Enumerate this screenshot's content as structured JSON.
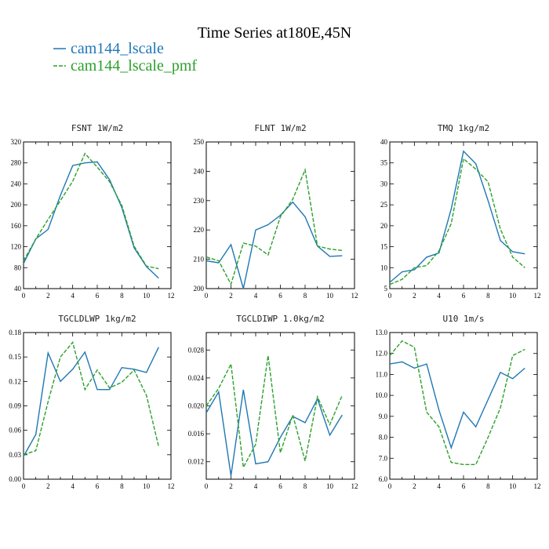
{
  "title": "Time Series at180E,45N",
  "legend": [
    {
      "label": "cam144_lscale",
      "color": "#1f77b4"
    },
    {
      "label": "cam144_lscale_pmf",
      "color": "#2ca02c"
    }
  ],
  "chart_data": [
    {
      "type": "line",
      "title": "FSNT  1W/m2",
      "xlim": [
        0,
        12
      ],
      "ylim": [
        40,
        320
      ],
      "xticks": [
        "0",
        "2",
        "4",
        "6",
        "8",
        "10",
        "12"
      ],
      "yticks": [
        "40",
        "80",
        "120",
        "160",
        "200",
        "240",
        "280",
        "320"
      ],
      "x": [
        0,
        1,
        2,
        3,
        4,
        5,
        6,
        7,
        8,
        9,
        10,
        11
      ],
      "series": [
        {
          "name": "cam144_lscale",
          "values": [
            88,
            135,
            153,
            218,
            275,
            280,
            282,
            248,
            195,
            118,
            82,
            60
          ]
        },
        {
          "name": "cam144_lscale_pmf",
          "values": [
            93,
            135,
            172,
            208,
            245,
            298,
            272,
            244,
            199,
            121,
            83,
            78
          ]
        }
      ]
    },
    {
      "type": "line",
      "title": "FLNT  1W/m2",
      "xlim": [
        0,
        12
      ],
      "ylim": [
        200,
        250
      ],
      "xticks": [
        "0",
        "2",
        "4",
        "6",
        "8",
        "10",
        "12"
      ],
      "yticks": [
        "200",
        "210",
        "220",
        "230",
        "240",
        "250"
      ],
      "x": [
        0,
        1,
        2,
        3,
        4,
        5,
        6,
        7,
        8,
        9,
        10,
        11
      ],
      "series": [
        {
          "name": "cam144_lscale",
          "values": [
            209.5,
            208.8,
            215,
            200,
            220,
            221.8,
            225,
            229.5,
            224.5,
            214.5,
            211,
            211.2
          ]
        },
        {
          "name": "cam144_lscale_pmf",
          "values": [
            210.8,
            209.5,
            201.5,
            215.5,
            214.5,
            211.5,
            224.5,
            230.5,
            240.5,
            214.5,
            213.5,
            213
          ]
        }
      ]
    },
    {
      "type": "line",
      "title": "TMQ  1kg/m2",
      "xlim": [
        0,
        12
      ],
      "ylim": [
        5,
        40
      ],
      "xticks": [
        "0",
        "2",
        "4",
        "6",
        "8",
        "10",
        "12"
      ],
      "yticks": [
        "5",
        "10",
        "15",
        "20",
        "25",
        "30",
        "35",
        "40"
      ],
      "x": [
        0,
        1,
        2,
        3,
        4,
        5,
        6,
        7,
        8,
        9,
        10,
        11
      ],
      "series": [
        {
          "name": "cam144_lscale",
          "values": [
            6.5,
            9,
            9.5,
            12.5,
            13.5,
            24,
            37.8,
            34.8,
            26,
            16.5,
            13.8,
            13.3
          ]
        },
        {
          "name": "cam144_lscale_pmf",
          "values": [
            6,
            7.2,
            10,
            10.5,
            14,
            20.5,
            36,
            33.5,
            30.5,
            19.2,
            12.5,
            10
          ]
        }
      ]
    },
    {
      "type": "line",
      "title": "TGCLDLWP  1kg/m2",
      "xlim": [
        0,
        12
      ],
      "ylim": [
        0,
        0.18
      ],
      "xticks": [
        "0",
        "2",
        "4",
        "6",
        "8",
        "10",
        "12"
      ],
      "yticks": [
        "0.00",
        "0.03",
        "0.06",
        "0.09",
        "0.12",
        "0.15",
        "0.18"
      ],
      "x": [
        0,
        1,
        2,
        3,
        4,
        5,
        6,
        7,
        8,
        9,
        10,
        11
      ],
      "series": [
        {
          "name": "cam144_lscale",
          "values": [
            0.028,
            0.055,
            0.155,
            0.12,
            0.135,
            0.156,
            0.11,
            0.11,
            0.137,
            0.135,
            0.131,
            0.162
          ]
        },
        {
          "name": "cam144_lscale_pmf",
          "values": [
            0.03,
            0.035,
            0.095,
            0.15,
            0.168,
            0.11,
            0.134,
            0.112,
            0.119,
            0.134,
            0.103,
            0.04
          ]
        }
      ]
    },
    {
      "type": "line",
      "title": "TGCLDIWP  1.0kg/m2",
      "xlim": [
        0,
        12
      ],
      "ylim": [
        0.0095,
        0.0305
      ],
      "xticks": [
        "0",
        "2",
        "4",
        "6",
        "8",
        "10",
        "12"
      ],
      "yticks": [
        "0.012",
        "0.016",
        "0.020",
        "0.024",
        "0.028"
      ],
      "x": [
        0,
        1,
        2,
        3,
        4,
        5,
        6,
        7,
        8,
        9,
        10,
        11
      ],
      "series": [
        {
          "name": "cam144_lscale",
          "values": [
            0.019,
            0.022,
            0.01,
            0.0223,
            0.0117,
            0.012,
            0.0155,
            0.0185,
            0.0176,
            0.021,
            0.0158,
            0.0187
          ]
        },
        {
          "name": "cam144_lscale_pmf",
          "values": [
            0.02,
            0.0225,
            0.026,
            0.0112,
            0.0145,
            0.0272,
            0.0133,
            0.0187,
            0.0121,
            0.0213,
            0.0173,
            0.0215
          ]
        }
      ]
    },
    {
      "type": "line",
      "title": "U10  1m/s",
      "xlim": [
        0,
        12
      ],
      "ylim": [
        6,
        13
      ],
      "xticks": [
        "0",
        "2",
        "4",
        "6",
        "8",
        "10",
        "12"
      ],
      "yticks": [
        "6.0",
        "7.0",
        "8.0",
        "9.0",
        "10.0",
        "11.0",
        "12.0",
        "13.0"
      ],
      "x": [
        0,
        1,
        2,
        3,
        4,
        5,
        6,
        7,
        8,
        9,
        10,
        11
      ],
      "series": [
        {
          "name": "cam144_lscale",
          "values": [
            11.5,
            11.6,
            11.3,
            11.5,
            9.3,
            7.5,
            9.2,
            8.5,
            9.8,
            11.1,
            10.8,
            11.3
          ]
        },
        {
          "name": "cam144_lscale_pmf",
          "values": [
            11.9,
            12.6,
            12.3,
            9.2,
            8.5,
            6.8,
            6.7,
            6.7,
            8.0,
            9.4,
            11.9,
            12.2
          ]
        }
      ]
    }
  ]
}
